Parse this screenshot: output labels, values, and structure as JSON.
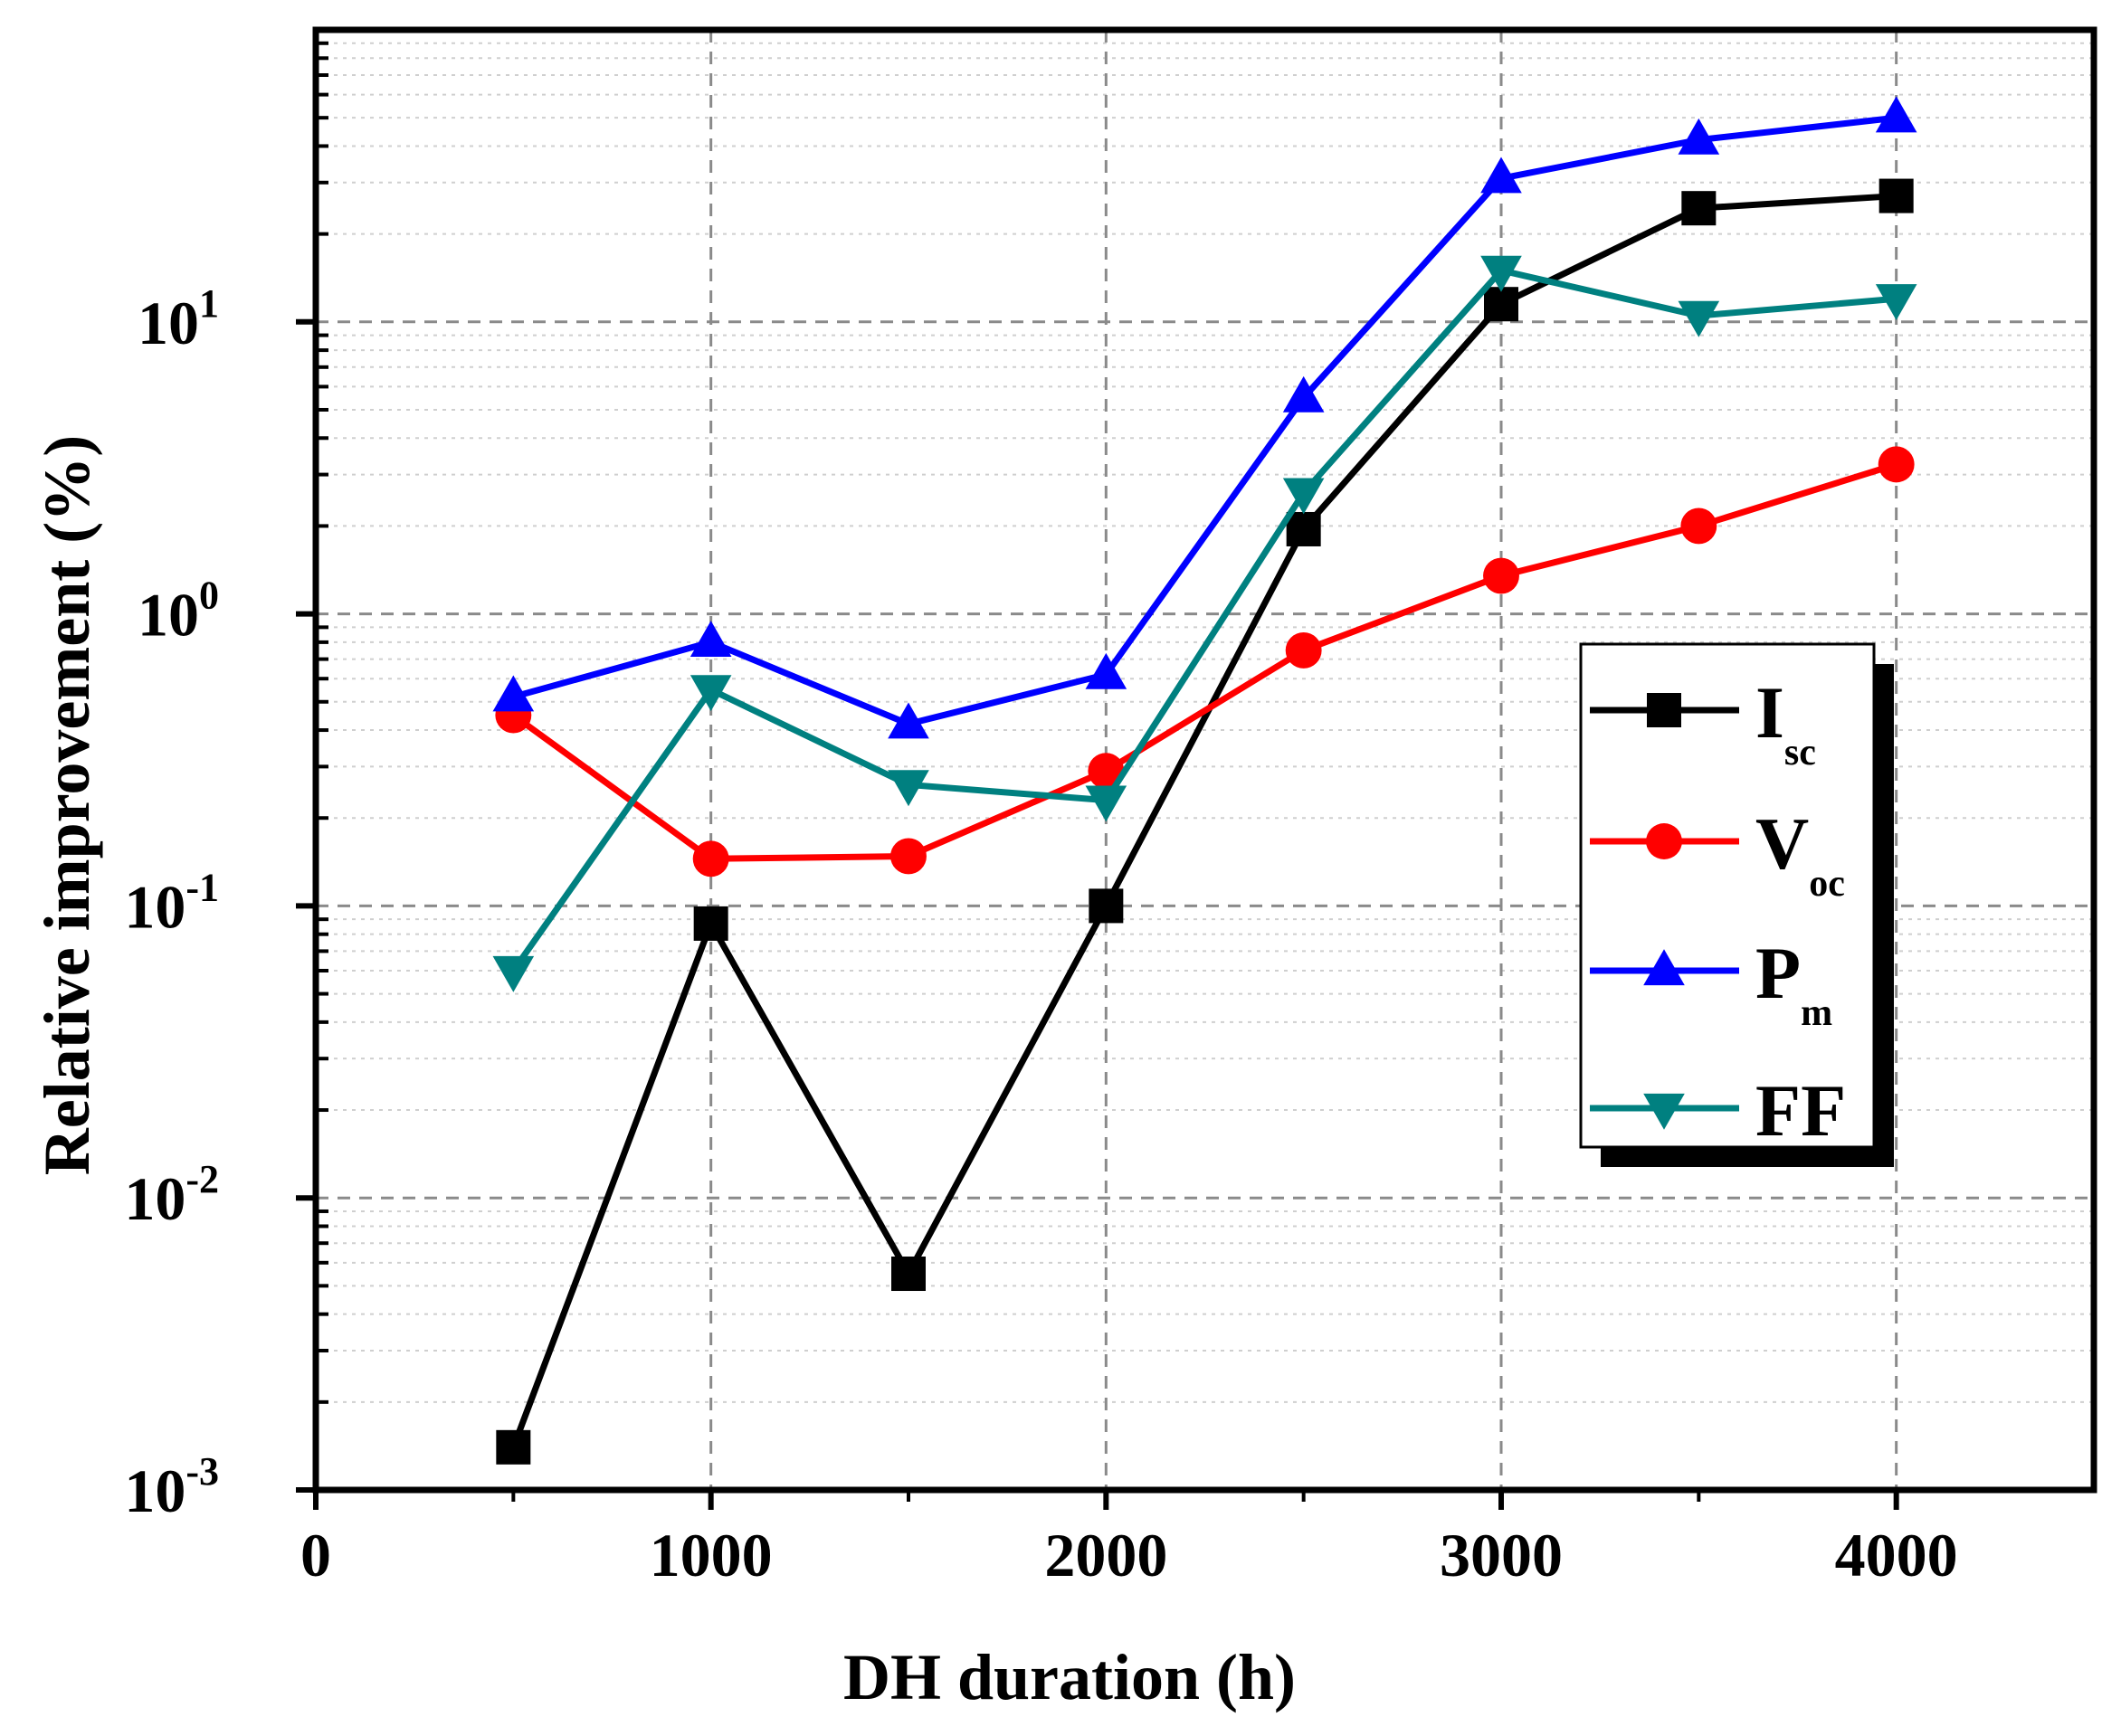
{
  "chart_data": {
    "type": "line",
    "title": "",
    "xlabel": "DH duration (h)",
    "ylabel": "Relative improvement (%)",
    "xlim": [
      0,
      4500
    ],
    "ylim": [
      0.001,
      100
    ],
    "yscale": "log",
    "grid": true,
    "x_ticks": [
      {
        "value": 0,
        "label": "0"
      },
      {
        "value": 1000,
        "label": "1000"
      },
      {
        "value": 2000,
        "label": "2000"
      },
      {
        "value": 3000,
        "label": "3000"
      },
      {
        "value": 4000,
        "label": "4000"
      }
    ],
    "y_ticks": [
      {
        "value": 0.001,
        "base": "10",
        "exp": "-3"
      },
      {
        "value": 0.01,
        "base": "10",
        "exp": "-2"
      },
      {
        "value": 0.1,
        "base": "10",
        "exp": "-1"
      },
      {
        "value": 1,
        "base": "10",
        "exp": "0"
      },
      {
        "value": 10,
        "base": "10",
        "exp": "1"
      }
    ],
    "legend_position": "right",
    "x": [
      500,
      1000,
      1500,
      2000,
      2500,
      3000,
      3500,
      4000
    ],
    "series": [
      {
        "name": "I",
        "sub": "sc",
        "color": "#000000",
        "marker": "square",
        "values": [
          0.0014,
          0.087,
          0.0055,
          0.1,
          1.95,
          11.5,
          24.5,
          27
        ]
      },
      {
        "name": "V",
        "sub": "oc",
        "color": "#ff0000",
        "marker": "circle",
        "values": [
          0.45,
          0.145,
          0.148,
          0.29,
          0.75,
          1.35,
          2.0,
          3.25
        ]
      },
      {
        "name": "P",
        "sub": "m",
        "color": "#0000ff",
        "marker": "triangle-up",
        "values": [
          0.52,
          0.8,
          0.42,
          0.62,
          5.5,
          31,
          42,
          50
        ]
      },
      {
        "name": "FF",
        "sub": "",
        "color": "#008080",
        "marker": "triangle-down",
        "values": [
          0.06,
          0.55,
          0.26,
          0.23,
          2.6,
          15,
          10.5,
          12
        ]
      }
    ]
  }
}
